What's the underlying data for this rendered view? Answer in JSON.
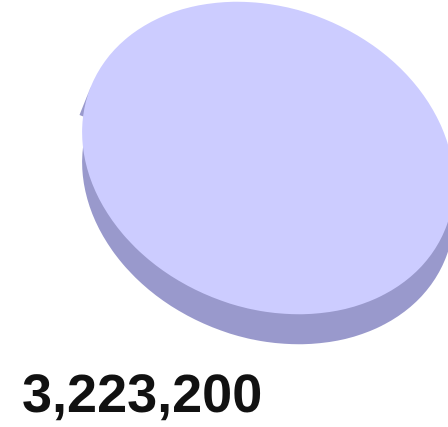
{
  "chart_data": {
    "type": "pie",
    "style": "3d",
    "slices": [
      {
        "value": 3223200,
        "value_label": "3,223,200",
        "top_color": "#ccccff",
        "side_color": "#9999cc"
      }
    ],
    "legend": "none"
  }
}
